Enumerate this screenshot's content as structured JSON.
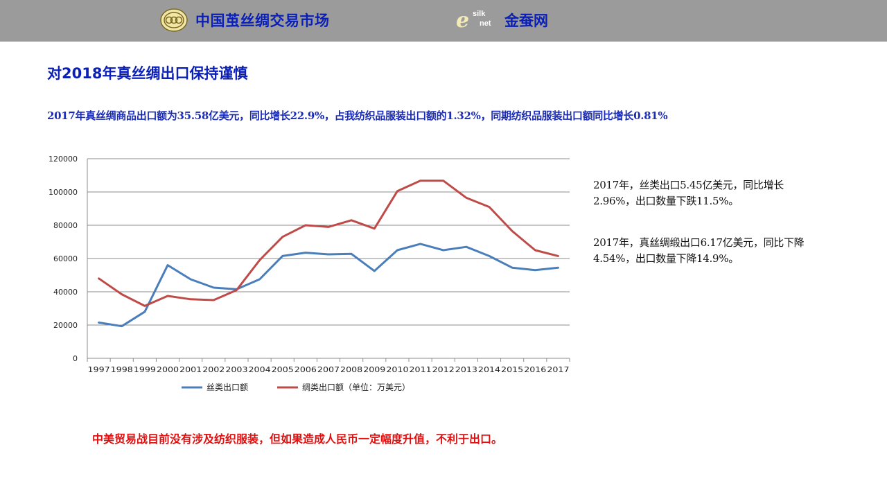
{
  "header": {
    "brand_left": "中国茧丝绸交易市场",
    "brand_right": "金蚕网",
    "logo_right_e": "e",
    "logo_right_silk": "silk",
    "logo_right_net": "net",
    "background": "#9b9b9b",
    "brand_color": "#0a1fb8"
  },
  "page": {
    "title": "对2018年真丝绸出口保持谨慎",
    "summary": "2017年真丝绸商品出口额为35.58亿美元，同比增长22.9%，占我纺织品服装出口额的1.32%，同期纺织品服装出口额同比增长0.81%",
    "note1": "2017年，丝类出口5.45亿美元，同比增长2.96%，出口数量下跌11.5%。",
    "note2": "2017年，真丝绸缎出口6.17亿美元，同比下降4.54%，出口数量下降14.9%。",
    "warning": "中美贸易战目前没有涉及纺织服装，但如果造成人民币一定幅度升值，不利于出口。",
    "warning_color": "#e01010"
  },
  "chart_data": {
    "type": "line",
    "title": "",
    "xlabel": "",
    "ylabel": "",
    "categories": [
      "1997",
      "1998",
      "1999",
      "2000",
      "2001",
      "2002",
      "2003",
      "2004",
      "2005",
      "2006",
      "2007",
      "2008",
      "2009",
      "2010",
      "2011",
      "2012",
      "2013",
      "2014",
      "2015",
      "2016",
      "2017"
    ],
    "ylim": [
      0,
      120000
    ],
    "yticks": [
      0,
      20000,
      40000,
      60000,
      80000,
      100000,
      120000
    ],
    "grid": true,
    "legend_position": "bottom",
    "series": [
      {
        "name": "丝类出口额",
        "color": "#4a7ebb",
        "values": [
          21500,
          19300,
          28000,
          56000,
          47500,
          42500,
          41500,
          47500,
          61500,
          63500,
          62500,
          62800,
          52500,
          65000,
          68800,
          65000,
          67000,
          61500,
          54500,
          53000,
          54500
        ]
      },
      {
        "name": "绸类出口额（单位：万美元）",
        "color": "#be4b48",
        "values": [
          48000,
          38500,
          31500,
          37500,
          35500,
          35000,
          41000,
          59000,
          73000,
          80000,
          79000,
          83000,
          78000,
          100500,
          106800,
          106800,
          96500,
          91000,
          76500,
          65000,
          61500
        ]
      }
    ]
  }
}
